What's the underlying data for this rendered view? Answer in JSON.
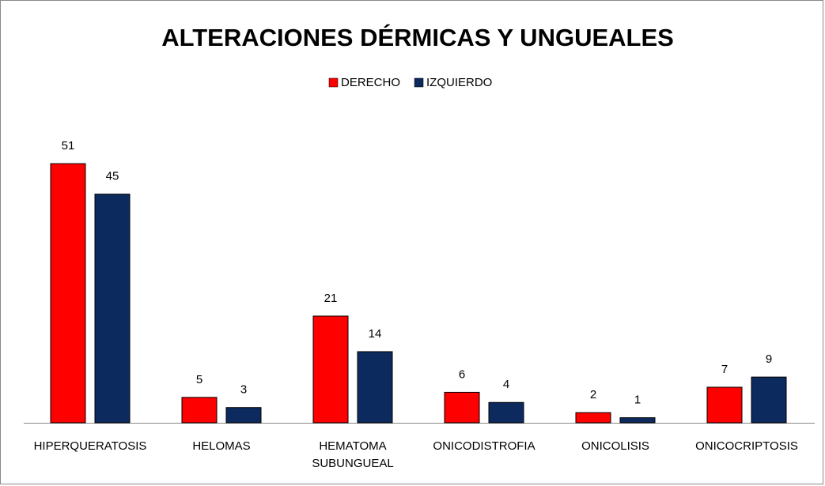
{
  "chart_data": {
    "type": "bar",
    "title": "ALTERACIONES  DÉRMICAS Y UNGUEALES",
    "categories": [
      "HIPERQUERATOSIS",
      "HELOMAS",
      "HEMATOMA SUBUNGUEAL",
      "ONICODISTROFIA",
      "ONICOLISIS",
      "ONICOCRIPTOSIS"
    ],
    "series": [
      {
        "name": "DERECHO",
        "color": "#ff0000",
        "values": [
          51,
          5,
          21,
          6,
          2,
          7
        ]
      },
      {
        "name": "IZQUIERDO",
        "color": "#0d2a5e",
        "values": [
          45,
          3,
          14,
          4,
          1,
          9
        ]
      }
    ],
    "ylim": [
      0,
      60
    ],
    "legend": "top"
  }
}
